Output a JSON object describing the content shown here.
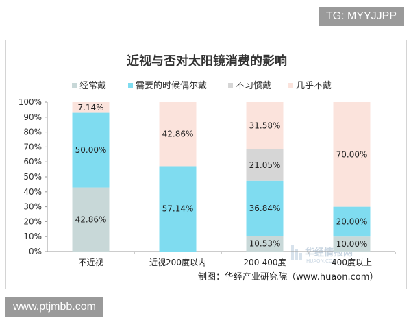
{
  "top_badge": "TG: MYYJJPP",
  "bottom_badge": "www.ptjmbb.com",
  "source_note": "制图：华经产业研究院（www.huaon.com）",
  "watermark": {
    "text": "华经情报网",
    "sub": "HUAON.COM"
  },
  "colors": {
    "经常戴": "#c8d8d8",
    "需要的时候偶尔戴": "#7fdcf0",
    "不习惯戴": "#d6d6d6",
    "几乎不戴": "#fbe3dc"
  },
  "chart_data": {
    "type": "bar",
    "stacked": true,
    "title": "近视与否对太阳镜消费的影响",
    "categories": [
      "不近视",
      "近视200度以内",
      "200-400度",
      "400度以上"
    ],
    "ylim": [
      0,
      100
    ],
    "yticks": [
      "0%",
      "10%",
      "20%",
      "30%",
      "40%",
      "50%",
      "60%",
      "70%",
      "80%",
      "90%",
      "100%"
    ],
    "legend_position": "top",
    "series": [
      {
        "name": "经常戴",
        "values": [
          42.86,
          0,
          10.53,
          10.0
        ],
        "labels": [
          "42.86%",
          "",
          "10.53%",
          "10.00%"
        ]
      },
      {
        "name": "需要的时候偶尔戴",
        "values": [
          50.0,
          57.14,
          36.84,
          20.0
        ],
        "labels": [
          "50.00%",
          "57.14%",
          "36.84%",
          "20.00%"
        ]
      },
      {
        "name": "不习惯戴",
        "values": [
          0,
          0,
          21.05,
          0
        ],
        "labels": [
          "",
          "",
          "21.05%",
          ""
        ]
      },
      {
        "name": "几乎不戴",
        "values": [
          7.14,
          42.86,
          31.58,
          70.0
        ],
        "labels": [
          "7.14%",
          "42.86%",
          "31.58%",
          "70.00%"
        ]
      }
    ]
  }
}
